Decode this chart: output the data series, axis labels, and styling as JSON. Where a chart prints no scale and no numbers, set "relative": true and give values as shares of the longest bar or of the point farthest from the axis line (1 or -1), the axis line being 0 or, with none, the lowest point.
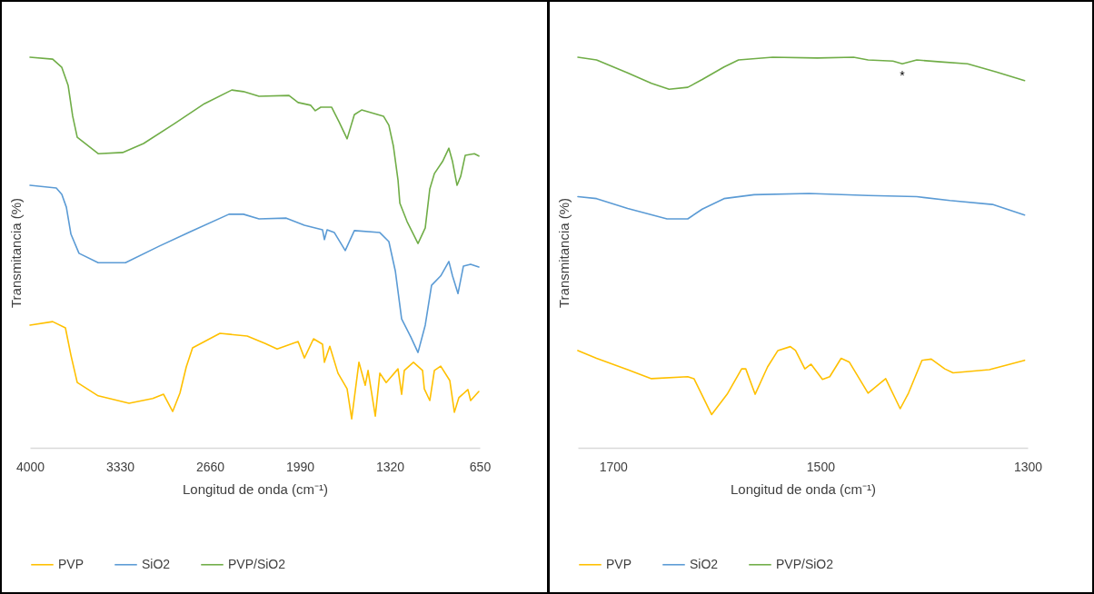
{
  "chart_data": [
    {
      "type": "line",
      "xlabel": "Longitud de onda (cm⁻¹)",
      "ylabel": "Transmitancia (%)",
      "relative": true,
      "tick_labels": "x",
      "legend": "bottom",
      "xlim": [
        4000,
        650
      ],
      "xticks": [
        4000,
        3330,
        2660,
        1990,
        1320,
        650
      ],
      "series": [
        {
          "name": "PVP",
          "color": "#ffc000",
          "x": [
            4000,
            3831,
            3736,
            3695,
            3648,
            3492,
            3262,
            3086,
            3005,
            2937,
            2883,
            2836,
            2789,
            2585,
            2382,
            2247,
            2159,
            2003,
            1956,
            1888,
            1821,
            1807,
            1767,
            1706,
            1638,
            1604,
            1550,
            1503,
            1482,
            1428,
            1394,
            1347,
            1259,
            1232,
            1212,
            1144,
            1076,
            1063,
            1022,
            988,
            941,
            873,
            839,
            806,
            738,
            718,
            657
          ],
          "values": [
            0.314,
            0.323,
            0.307,
            0.237,
            0.167,
            0.133,
            0.114,
            0.126,
            0.137,
            0.093,
            0.14,
            0.207,
            0.256,
            0.293,
            0.286,
            0.267,
            0.253,
            0.272,
            0.23,
            0.279,
            0.265,
            0.219,
            0.26,
            0.191,
            0.151,
            0.074,
            0.219,
            0.16,
            0.198,
            0.081,
            0.191,
            0.167,
            0.202,
            0.137,
            0.198,
            0.219,
            0.198,
            0.151,
            0.121,
            0.198,
            0.209,
            0.172,
            0.091,
            0.128,
            0.149,
            0.121,
            0.144
          ]
        },
        {
          "name": "SiO2",
          "color": "#5b9bd5",
          "x": [
            4000,
            3804,
            3763,
            3729,
            3695,
            3635,
            3492,
            3289,
            3039,
            2789,
            2518,
            2410,
            2294,
            2091,
            1956,
            1821,
            1807,
            1787,
            1733,
            1652,
            1584,
            1394,
            1327,
            1279,
            1232,
            1164,
            1110,
            1056,
            1009,
            941,
            880,
            853,
            812,
            772,
            718,
            657
          ],
          "values": [
            0.672,
            0.665,
            0.649,
            0.616,
            0.547,
            0.498,
            0.474,
            0.474,
            0.516,
            0.556,
            0.598,
            0.598,
            0.586,
            0.588,
            0.57,
            0.558,
            0.533,
            0.558,
            0.551,
            0.505,
            0.556,
            0.551,
            0.528,
            0.453,
            0.33,
            0.284,
            0.244,
            0.314,
            0.416,
            0.44,
            0.477,
            0.44,
            0.395,
            0.465,
            0.47,
            0.463
          ]
        },
        {
          "name": "PVP/SiO2",
          "color": "#70ad47",
          "x": [
            4000,
            3831,
            3763,
            3716,
            3682,
            3648,
            3492,
            3310,
            3154,
            2924,
            2701,
            2497,
            2410,
            2294,
            2071,
            2003,
            1909,
            1875,
            1834,
            1753,
            1699,
            1638,
            1584,
            1530,
            1367,
            1327,
            1293,
            1259,
            1245,
            1191,
            1110,
            1056,
            1022,
            988,
            927,
            880,
            853,
            819,
            792,
            758,
            690,
            657
          ],
          "values": [
            1.0,
            0.995,
            0.974,
            0.928,
            0.849,
            0.795,
            0.753,
            0.756,
            0.779,
            0.83,
            0.881,
            0.916,
            0.912,
            0.9,
            0.902,
            0.884,
            0.877,
            0.863,
            0.872,
            0.872,
            0.835,
            0.791,
            0.853,
            0.865,
            0.849,
            0.826,
            0.772,
            0.686,
            0.626,
            0.579,
            0.523,
            0.563,
            0.663,
            0.702,
            0.733,
            0.767,
            0.733,
            0.672,
            0.695,
            0.749,
            0.753,
            0.747
          ]
        }
      ]
    },
    {
      "type": "line",
      "xlabel": "Longitud de onda (cm⁻¹)",
      "ylabel": "Transmitancia (%)",
      "relative": true,
      "tick_labels": "x",
      "legend": "bottom",
      "xlim": [
        1734,
        1300
      ],
      "xticks": [
        1700,
        1500,
        1300
      ],
      "annotations": [
        {
          "text": "*",
          "x": 1421,
          "y": 0.983
        }
      ],
      "series": [
        {
          "name": "PVP",
          "color": "#ffc000",
          "x": [
            1734,
            1716,
            1686,
            1663,
            1628,
            1622,
            1605,
            1590,
            1576,
            1572,
            1563,
            1551,
            1541,
            1529,
            1524,
            1515,
            1509,
            1498,
            1491,
            1480,
            1472,
            1454,
            1437,
            1423,
            1415,
            1402,
            1393,
            1380,
            1372,
            1337,
            1303
          ],
          "values": [
            0.249,
            0.229,
            0.2,
            0.177,
            0.182,
            0.177,
            0.085,
            0.137,
            0.202,
            0.202,
            0.137,
            0.207,
            0.249,
            0.259,
            0.249,
            0.202,
            0.214,
            0.175,
            0.182,
            0.229,
            0.219,
            0.14,
            0.177,
            0.1,
            0.14,
            0.224,
            0.227,
            0.202,
            0.192,
            0.2,
            0.224
          ]
        },
        {
          "name": "SiO2",
          "color": "#5b9bd5",
          "x": [
            1734,
            1716,
            1686,
            1648,
            1628,
            1614,
            1593,
            1564,
            1511,
            1454,
            1407,
            1375,
            1334,
            1303
          ],
          "values": [
            0.643,
            0.638,
            0.613,
            0.586,
            0.586,
            0.611,
            0.638,
            0.648,
            0.651,
            0.646,
            0.643,
            0.633,
            0.623,
            0.596
          ]
        },
        {
          "name": "PVP/SiO2",
          "color": "#70ad47",
          "x": [
            1734,
            1716,
            1686,
            1663,
            1646,
            1628,
            1614,
            1593,
            1579,
            1546,
            1503,
            1468,
            1454,
            1430,
            1421,
            1407,
            1384,
            1358,
            1331,
            1303
          ],
          "values": [
            1.0,
            0.993,
            0.96,
            0.933,
            0.918,
            0.923,
            0.943,
            0.975,
            0.993,
            1.0,
            0.998,
            1.0,
            0.993,
            0.99,
            0.983,
            0.993,
            0.988,
            0.983,
            0.963,
            0.94
          ]
        }
      ]
    }
  ]
}
